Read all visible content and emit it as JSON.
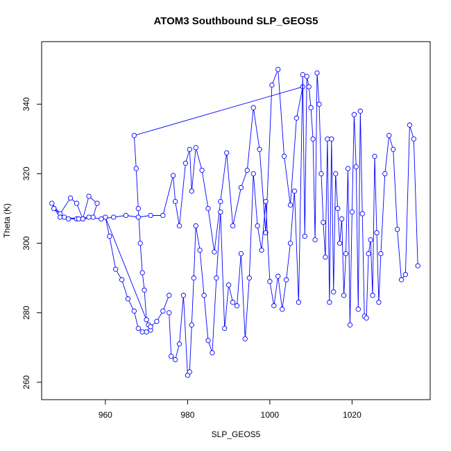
{
  "chart_data": {
    "type": "scatter",
    "connected": true,
    "title": "ATOM3 Southbound SLP_GEOS5",
    "xlabel": "SLP_GEOS5",
    "ylabel": "Theta (K)",
    "xlim": [
      944.5,
      1039
    ],
    "ylim": [
      255,
      358
    ],
    "xticks": [
      960,
      980,
      1000,
      1020
    ],
    "yticks": [
      260,
      280,
      300,
      320,
      340
    ],
    "color": "#0000ff",
    "grid": false,
    "legend": "none",
    "series": [
      {
        "x": [
          947.5,
          947,
          949,
          951.5,
          953,
          954.5,
          956,
          958,
          957,
          954.5,
          953,
          951,
          949,
          947.5,
          950,
          953.5,
          956,
          959,
          962,
          965,
          968,
          971,
          974,
          976.5,
          977,
          978,
          979.5,
          980.5,
          981,
          982,
          983.5,
          985,
          986.5,
          988,
          989.5,
          991,
          993,
          994.5,
          996,
          997.5,
          999,
          1000.5,
          1002,
          1003.5,
          1005,
          1006.5,
          1008,
          967,
          967.5,
          968,
          968.5,
          969,
          969.5,
          970,
          970.5,
          971,
          960,
          961,
          962.5,
          964,
          965.5,
          967,
          968,
          969,
          970,
          971,
          972.5,
          974,
          975.5
        ],
        "y": [
          310,
          311.5,
          308.5,
          313,
          311.5,
          307,
          313.5,
          311.5,
          307.5,
          307,
          307,
          307,
          307.5,
          310,
          307.5,
          307,
          307.5,
          307,
          307.5,
          308,
          307.5,
          308,
          308,
          319.5,
          312,
          305,
          323,
          327,
          315,
          327.5,
          321,
          310,
          297.5,
          312,
          326,
          305,
          316,
          321,
          339,
          327,
          303,
          345.5,
          350,
          325,
          311,
          336,
          345,
          331,
          321.5,
          310,
          300,
          291.5,
          286.5,
          278,
          276.5,
          275,
          307.5,
          302,
          292.5,
          289.5,
          284,
          280.5,
          275.5,
          274.5,
          274.5,
          276,
          277.5,
          280.5,
          285
        ]
      },
      {
        "x": [
          975.5,
          976,
          977,
          978,
          979,
          980,
          980.5,
          981,
          981.5,
          982,
          983,
          984,
          985,
          986,
          987,
          988,
          989,
          990,
          991,
          992,
          993,
          994,
          995,
          996,
          997,
          998,
          999,
          1000,
          1001,
          1002,
          1003,
          1004,
          1005,
          1006,
          1007,
          1008,
          1008.5,
          1009,
          1009.5,
          1010,
          1010.5,
          1011,
          1011.5,
          1012,
          1012.5,
          1013,
          1013.5,
          1014,
          1014.5,
          1015,
          1015.5,
          1016,
          1016.5,
          1017,
          1017.5,
          1018,
          1018.5,
          1019,
          1019.5,
          1020,
          1020.5,
          1021,
          1021.5,
          1022,
          1022.5,
          1023,
          1023.5,
          1024,
          1024.5,
          1025,
          1025.5,
          1026,
          1026.5,
          1027,
          1028,
          1029,
          1030,
          1031,
          1032,
          1033,
          1034,
          1035,
          1036
        ],
        "y": [
          280,
          267.5,
          266.5,
          271,
          285,
          262,
          263,
          276.5,
          290,
          305,
          298,
          285,
          272,
          268.5,
          290,
          309,
          275.5,
          288,
          283,
          282,
          297,
          272.5,
          290,
          320,
          305,
          298,
          312,
          289,
          282,
          290.5,
          281,
          289.5,
          300,
          315,
          283,
          348.5,
          302,
          348,
          345,
          339,
          330,
          301,
          349,
          340,
          320,
          306,
          296,
          330,
          283,
          330,
          286,
          320,
          310,
          300,
          307,
          285,
          297,
          321.5,
          276.5,
          309,
          337,
          322,
          281,
          338,
          308.5,
          279,
          278.5,
          297,
          301,
          285,
          325,
          303,
          283,
          297,
          320,
          331,
          327,
          304,
          289.5,
          291,
          334,
          330,
          293.5
        ]
      }
    ]
  }
}
